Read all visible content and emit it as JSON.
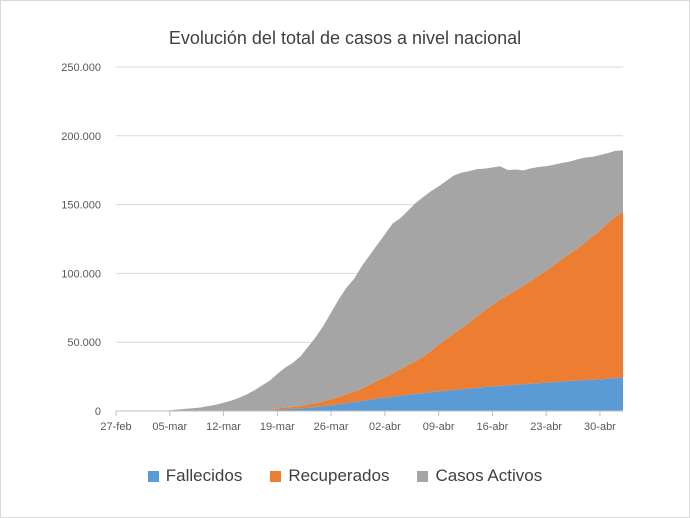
{
  "chart_data": {
    "type": "area",
    "stacked": true,
    "title": "Evolución del total de casos a nivel nacional",
    "xlabel": "",
    "ylabel": "",
    "x_start": "27-feb",
    "x_end": "03-may",
    "x_ticks": [
      "27-feb",
      "05-mar",
      "12-mar",
      "19-mar",
      "26-mar",
      "02-abr",
      "09-abr",
      "16-abr",
      "23-abr",
      "30-abr"
    ],
    "y_ticks": [
      "0",
      "50.000",
      "100.000",
      "150.000",
      "200.000",
      "250.000"
    ],
    "ylim": [
      0,
      250000
    ],
    "grid": true,
    "legend_position": "bottom",
    "x": [
      "27-feb",
      "28-feb",
      "29-feb",
      "01-mar",
      "02-mar",
      "03-mar",
      "04-mar",
      "05-mar",
      "06-mar",
      "07-mar",
      "08-mar",
      "09-mar",
      "10-mar",
      "11-mar",
      "12-mar",
      "13-mar",
      "14-mar",
      "15-mar",
      "16-mar",
      "17-mar",
      "18-mar",
      "19-mar",
      "20-mar",
      "21-mar",
      "22-mar",
      "23-mar",
      "24-mar",
      "25-mar",
      "26-mar",
      "27-mar",
      "28-mar",
      "29-mar",
      "30-mar",
      "31-mar",
      "01-abr",
      "02-abr",
      "03-abr",
      "04-abr",
      "05-abr",
      "06-abr",
      "07-abr",
      "08-abr",
      "09-abr",
      "10-abr",
      "11-abr",
      "12-abr",
      "13-abr",
      "14-abr",
      "15-abr",
      "16-abr",
      "17-abr",
      "18-abr",
      "19-abr",
      "20-abr",
      "21-abr",
      "22-abr",
      "23-abr",
      "24-abr",
      "25-abr",
      "26-abr",
      "27-abr",
      "28-abr",
      "29-abr",
      "30-abr",
      "01-may",
      "02-may",
      "03-may"
    ],
    "series": [
      {
        "name": "Fallecidos",
        "color": "#5b9bd5",
        "values": [
          0,
          0,
          0,
          0,
          0,
          0,
          0,
          0,
          0,
          0,
          0,
          0,
          0,
          0,
          0,
          0,
          0,
          0,
          0,
          0,
          0,
          1000,
          1200,
          1500,
          1800,
          2400,
          2900,
          3500,
          4200,
          4900,
          5700,
          6500,
          7300,
          8200,
          9000,
          9700,
          10400,
          11100,
          11800,
          12400,
          13000,
          13700,
          14300,
          14800,
          15300,
          15800,
          16300,
          16900,
          17400,
          17900,
          18300,
          18600,
          19000,
          19400,
          19800,
          20200,
          20600,
          21000,
          21400,
          21800,
          22100,
          22400,
          22700,
          23000,
          23400,
          24000,
          24400
        ]
      },
      {
        "name": "Recuperados",
        "color": "#ed7d31",
        "values": [
          0,
          0,
          0,
          0,
          0,
          0,
          0,
          0,
          0,
          0,
          0,
          0,
          0,
          0,
          0,
          0,
          0,
          0,
          0,
          0,
          0,
          1000,
          1200,
          1500,
          1800,
          2200,
          2800,
          3500,
          4300,
          5300,
          6400,
          7600,
          9000,
          10800,
          12800,
          14700,
          16800,
          19000,
          21600,
          23800,
          26500,
          30000,
          33900,
          37400,
          40900,
          44400,
          48000,
          51900,
          55700,
          59100,
          62600,
          65500,
          68500,
          71500,
          74500,
          78100,
          81300,
          85000,
          88800,
          92300,
          95700,
          99700,
          104000,
          108000,
          113000,
          117000,
          120000
        ]
      },
      {
        "name": "Casos Activos",
        "color": "#a5a5a5",
        "values": [
          0,
          0,
          0,
          0,
          0,
          0,
          0,
          500,
          1000,
          1500,
          2000,
          2500,
          3500,
          4500,
          6000,
          7500,
          9500,
          12000,
          15000,
          18500,
          22000,
          25000,
          29000,
          32000,
          36000,
          42000,
          48000,
          55000,
          63000,
          71000,
          77500,
          82000,
          89000,
          94000,
          99000,
          104000,
          109000,
          110000,
          112000,
          115000,
          116000,
          116000,
          115000,
          115000,
          115000,
          113000,
          110000,
          107000,
          103000,
          100000,
          97000,
          91000,
          88000,
          84000,
          82000,
          79000,
          76000,
          73000,
          70000,
          67000,
          65000,
          62000,
          58000,
          55000,
          51000,
          48000,
          45000
        ]
      }
    ]
  }
}
